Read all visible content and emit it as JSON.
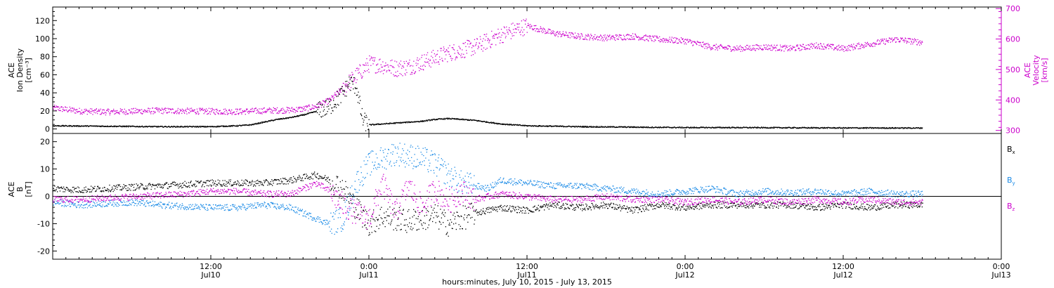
{
  "colors": {
    "axis": "#000000",
    "density": "#000000",
    "velocity": "#cc00cc",
    "bx": "#000000",
    "by": "#1a8ae6",
    "bz": "#cc00cc"
  },
  "footer": {
    "label": "hours:minutes, July 10, 2015 - July 13, 2015"
  },
  "chart_data": [
    {
      "type": "scatter",
      "panel": "top",
      "xlim": [
        0,
        72
      ],
      "x_unit": "hours since 2015-07-10 00:00 (edge-of-plot time axis)",
      "x_ticks": [
        {
          "x": 12,
          "l1": "12:00",
          "l2": "Jul10"
        },
        {
          "x": 24,
          "l1": "0:00",
          "l2": "Jul11"
        },
        {
          "x": 36,
          "l1": "12:00",
          "l2": "Jul11"
        },
        {
          "x": 48,
          "l1": "0:00",
          "l2": "Jul12"
        },
        {
          "x": 60,
          "l1": "12:00",
          "l2": "Jul12"
        },
        {
          "x": 72,
          "l1": "0:00",
          "l2": "Jul13"
        }
      ],
      "left_axis": {
        "label_lines": [
          "ACE",
          "Ion Density",
          "[cm⁻³]"
        ],
        "ylim": [
          -5,
          135
        ],
        "ticks": [
          0,
          20,
          40,
          60,
          80,
          100,
          120
        ]
      },
      "right_axis": {
        "label_lines": [
          "ACE",
          "Velocity",
          "[km/s]"
        ],
        "ylim": [
          290,
          705
        ],
        "ticks": [
          300,
          400,
          500,
          600,
          700
        ]
      },
      "series": [
        {
          "name": "Ion Density",
          "axis": "left",
          "x": [
            0,
            4,
            8,
            12,
            14,
            15,
            16,
            17,
            18,
            19,
            20,
            21,
            22,
            22.5,
            23,
            23.5,
            24,
            25,
            26,
            27,
            28,
            29,
            30,
            31,
            32,
            33,
            34,
            36,
            40,
            44,
            48,
            52,
            56,
            60,
            66
          ],
          "y": [
            4,
            3.5,
            3,
            3,
            4,
            5,
            8,
            11,
            13,
            16,
            20,
            25,
            40,
            52,
            48,
            10,
            5,
            6,
            7,
            8,
            9,
            11,
            12,
            11,
            10,
            8,
            6,
            4,
            3,
            2.5,
            2,
            2,
            1.8,
            1.6,
            1.5
          ]
        },
        {
          "name": "Velocity",
          "axis": "right",
          "x": [
            0,
            2,
            4,
            6,
            8,
            10,
            12,
            14,
            16,
            18,
            19,
            20,
            21,
            22,
            23,
            24,
            25,
            26,
            27,
            28,
            29,
            30,
            31,
            32,
            33,
            34,
            35,
            36,
            38,
            40,
            42,
            44,
            46,
            48,
            50,
            52,
            54,
            56,
            58,
            60,
            62,
            64,
            66
          ],
          "y": [
            375,
            365,
            362,
            364,
            366,
            365,
            364,
            363,
            366,
            368,
            372,
            380,
            400,
            440,
            480,
            520,
            515,
            505,
            510,
            525,
            540,
            555,
            565,
            575,
            595,
            615,
            630,
            645,
            620,
            610,
            605,
            610,
            600,
            595,
            575,
            570,
            575,
            570,
            580,
            570,
            585,
            600,
            590
          ]
        }
      ]
    },
    {
      "type": "scatter",
      "panel": "bottom",
      "xlim": [
        0,
        72
      ],
      "left_axis": {
        "label_lines": [
          "ACE",
          "B",
          "[nT]"
        ],
        "ylim": [
          -23,
          23
        ],
        "ticks": [
          -20,
          -10,
          0,
          10,
          20
        ]
      },
      "zero_line": 0,
      "legend": {
        "placement": "right",
        "entries": [
          {
            "base": "B",
            "sub": "x",
            "series": "bx"
          },
          {
            "base": "B",
            "sub": "y",
            "series": "by"
          },
          {
            "base": "B",
            "sub": "z",
            "series": "bz"
          }
        ]
      },
      "series": [
        {
          "name": "Bx",
          "key": "bx",
          "x": [
            0,
            2,
            4,
            6,
            8,
            10,
            12,
            14,
            16,
            18,
            19,
            20,
            21,
            22,
            23,
            24,
            25,
            26,
            27,
            28,
            29,
            30,
            31,
            32,
            33,
            34,
            36,
            38,
            40,
            42,
            44,
            46,
            48,
            50,
            52,
            54,
            56,
            58,
            60,
            62,
            64,
            66
          ],
          "y": [
            3,
            2.5,
            3,
            3.5,
            4,
            4.5,
            5,
            5,
            5,
            6,
            7,
            8,
            6,
            3,
            -4,
            -10,
            -7,
            -8,
            -9,
            -8,
            -7,
            -10,
            -8,
            -6,
            -5,
            -4,
            -5,
            -3,
            -4,
            -3,
            -5,
            -3,
            -4,
            -3,
            -3,
            -3,
            -3,
            -4,
            -3,
            -4,
            -3,
            -3
          ]
        },
        {
          "name": "By",
          "key": "by",
          "x": [
            0,
            2,
            4,
            6,
            8,
            10,
            12,
            14,
            16,
            18,
            19,
            20,
            21,
            22,
            23,
            24,
            25,
            26,
            27,
            28,
            29,
            30,
            31,
            32,
            33,
            34,
            36,
            38,
            40,
            42,
            44,
            46,
            48,
            50,
            52,
            54,
            56,
            58,
            60,
            62,
            64,
            66
          ],
          "y": [
            -2,
            -3,
            -2.5,
            -2,
            -3,
            -3.5,
            -4,
            -4,
            -3,
            -4,
            -6,
            -8,
            -10,
            -8,
            5,
            12,
            14,
            16,
            15,
            14,
            12,
            8,
            5,
            4,
            3,
            6,
            5,
            4,
            4,
            3,
            2,
            1,
            2,
            3,
            1,
            2,
            1.5,
            2,
            1,
            2,
            1,
            1
          ]
        },
        {
          "name": "Bz",
          "key": "bz",
          "x": [
            0,
            2,
            4,
            6,
            8,
            10,
            12,
            14,
            16,
            18,
            19,
            20,
            21,
            22,
            23,
            24,
            25,
            26,
            27,
            28,
            29,
            30,
            31,
            32,
            33,
            34,
            36,
            38,
            40,
            42,
            44,
            46,
            48,
            50,
            52,
            54,
            56,
            58,
            60,
            62,
            64,
            66
          ],
          "y": [
            -1,
            -1,
            -0.5,
            0,
            0.5,
            1,
            2,
            2,
            1,
            1,
            3,
            5,
            2,
            -3,
            -6,
            -8,
            5,
            -6,
            4,
            -4,
            3,
            -2,
            2,
            -1,
            0,
            1,
            0,
            -1,
            -1,
            0,
            -1,
            -1,
            -2,
            -1,
            -2,
            -1,
            -2,
            -1,
            -2,
            -1,
            -2,
            -2
          ]
        }
      ]
    }
  ]
}
